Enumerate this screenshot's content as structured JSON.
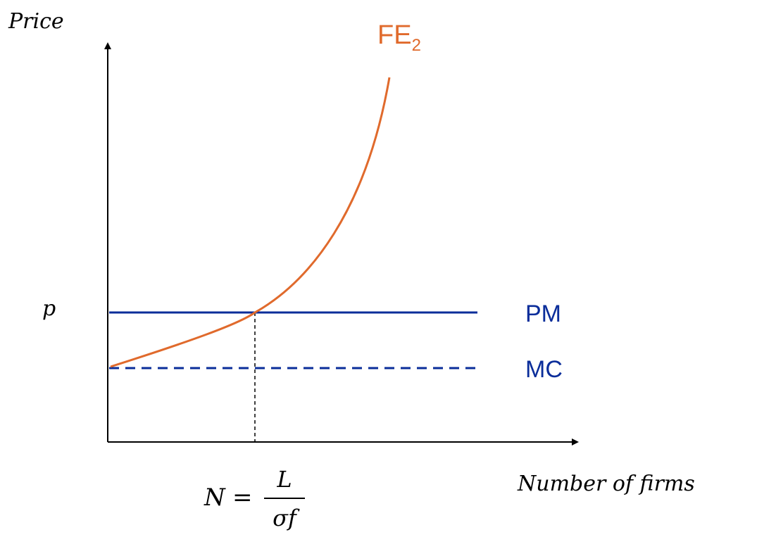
{
  "axes": {
    "y_label": "Price",
    "x_label": "Number of firms"
  },
  "price_label": "p",
  "curves": {
    "fe": {
      "label": "FE",
      "subscript": "2",
      "color": "#E06A2C"
    },
    "pm": {
      "label": "PM",
      "color": "#0A2D9A"
    },
    "mc": {
      "label": "MC",
      "color": "#0A2D9A"
    }
  },
  "equilibrium": {
    "lhs": "N",
    "eq": "=",
    "numerator": "L",
    "denominator": "σf"
  }
}
